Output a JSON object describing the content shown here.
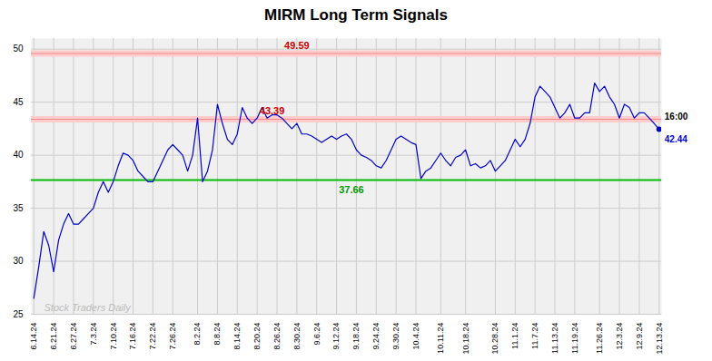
{
  "chart_data": {
    "type": "line",
    "title": "MIRM Long Term Signals",
    "categories": [
      "6.14.24",
      null,
      null,
      null,
      "6.21.24",
      null,
      null,
      null,
      "6.27.24",
      null,
      null,
      null,
      "7.3.24",
      null,
      null,
      null,
      "7.10.24",
      null,
      null,
      null,
      "7.16.24",
      null,
      null,
      null,
      "7.22.24",
      null,
      null,
      null,
      "7.26.24",
      null,
      null,
      null,
      null,
      "8.2.24",
      null,
      null,
      null,
      "8.8.24",
      null,
      null,
      null,
      "8.14.24",
      null,
      null,
      null,
      "8.20.24",
      null,
      null,
      null,
      "8.26.24",
      null,
      null,
      null,
      "8.30.24",
      null,
      null,
      null,
      "9.6.24",
      null,
      null,
      null,
      "9.12.24",
      null,
      null,
      null,
      "9.18.24",
      null,
      null,
      null,
      "9.24.24",
      null,
      null,
      null,
      "9.30.24",
      null,
      null,
      null,
      "10.4.24",
      null,
      null,
      null,
      null,
      "10.11.24",
      null,
      null,
      null,
      null,
      "10.18.24",
      null,
      null,
      null,
      null,
      null,
      "10.28.24",
      null,
      null,
      null,
      "11.1.24",
      null,
      null,
      null,
      "11.7.24",
      null,
      null,
      null,
      "11.13.24",
      null,
      null,
      null,
      "11.19.24",
      null,
      null,
      null,
      null,
      "11.26.24",
      null,
      null,
      null,
      "12.3.24",
      null,
      null,
      null,
      "12.9.24",
      null,
      null,
      null,
      "12.13.24"
    ],
    "values": [
      26.5,
      29.5,
      32.8,
      31.5,
      29.0,
      32.0,
      33.5,
      34.5,
      33.5,
      33.5,
      34.0,
      34.5,
      35.0,
      36.5,
      37.5,
      36.5,
      37.5,
      39.0,
      40.2,
      40.0,
      39.5,
      38.5,
      38.0,
      37.5,
      37.5,
      38.5,
      39.5,
      40.5,
      41.0,
      40.5,
      40.0,
      38.5,
      40.0,
      43.5,
      37.5,
      38.5,
      40.5,
      44.8,
      43.0,
      41.5,
      41.0,
      42.0,
      44.5,
      43.5,
      43.0,
      43.5,
      44.5,
      43.5,
      43.8,
      43.8,
      43.5,
      43.0,
      42.5,
      43.0,
      42.0,
      42.0,
      41.8,
      41.5,
      41.2,
      41.5,
      41.8,
      41.5,
      41.8,
      42.0,
      41.5,
      40.5,
      40.0,
      39.8,
      39.5,
      39.0,
      38.8,
      39.5,
      40.5,
      41.5,
      41.8,
      41.5,
      41.2,
      41.0,
      37.8,
      38.5,
      38.8,
      39.5,
      40.2,
      39.5,
      39.0,
      39.8,
      40.0,
      40.5,
      39.0,
      39.2,
      38.8,
      39.0,
      39.5,
      38.5,
      39.0,
      39.5,
      40.5,
      41.5,
      40.8,
      41.5,
      43.0,
      45.5,
      46.5,
      46.0,
      45.5,
      44.5,
      43.5,
      44.0,
      44.8,
      43.5,
      43.5,
      44.0,
      44.0,
      46.8,
      46.0,
      46.5,
      45.5,
      44.8,
      43.5,
      44.8,
      44.5,
      43.5,
      44.0,
      44.0,
      43.5,
      43.0,
      42.44
    ],
    "color": "#0000cc",
    "ylim": [
      25,
      51
    ],
    "yticks": [
      25,
      30,
      35,
      40,
      45,
      50
    ],
    "grid": true,
    "reference_lines": [
      {
        "value": 49.59,
        "color": "#ee8888",
        "band_color": "#ffcccc",
        "label_color": "#cc0000"
      },
      {
        "value": 43.39,
        "color": "#ee8888",
        "band_color": "#ffcccc",
        "label_color": "#cc0000"
      },
      {
        "value": 37.66,
        "color": "#00bb00",
        "label_color": "#009900"
      }
    ],
    "watermark": "Stock Traders Daily",
    "last_label": "16:00"
  }
}
